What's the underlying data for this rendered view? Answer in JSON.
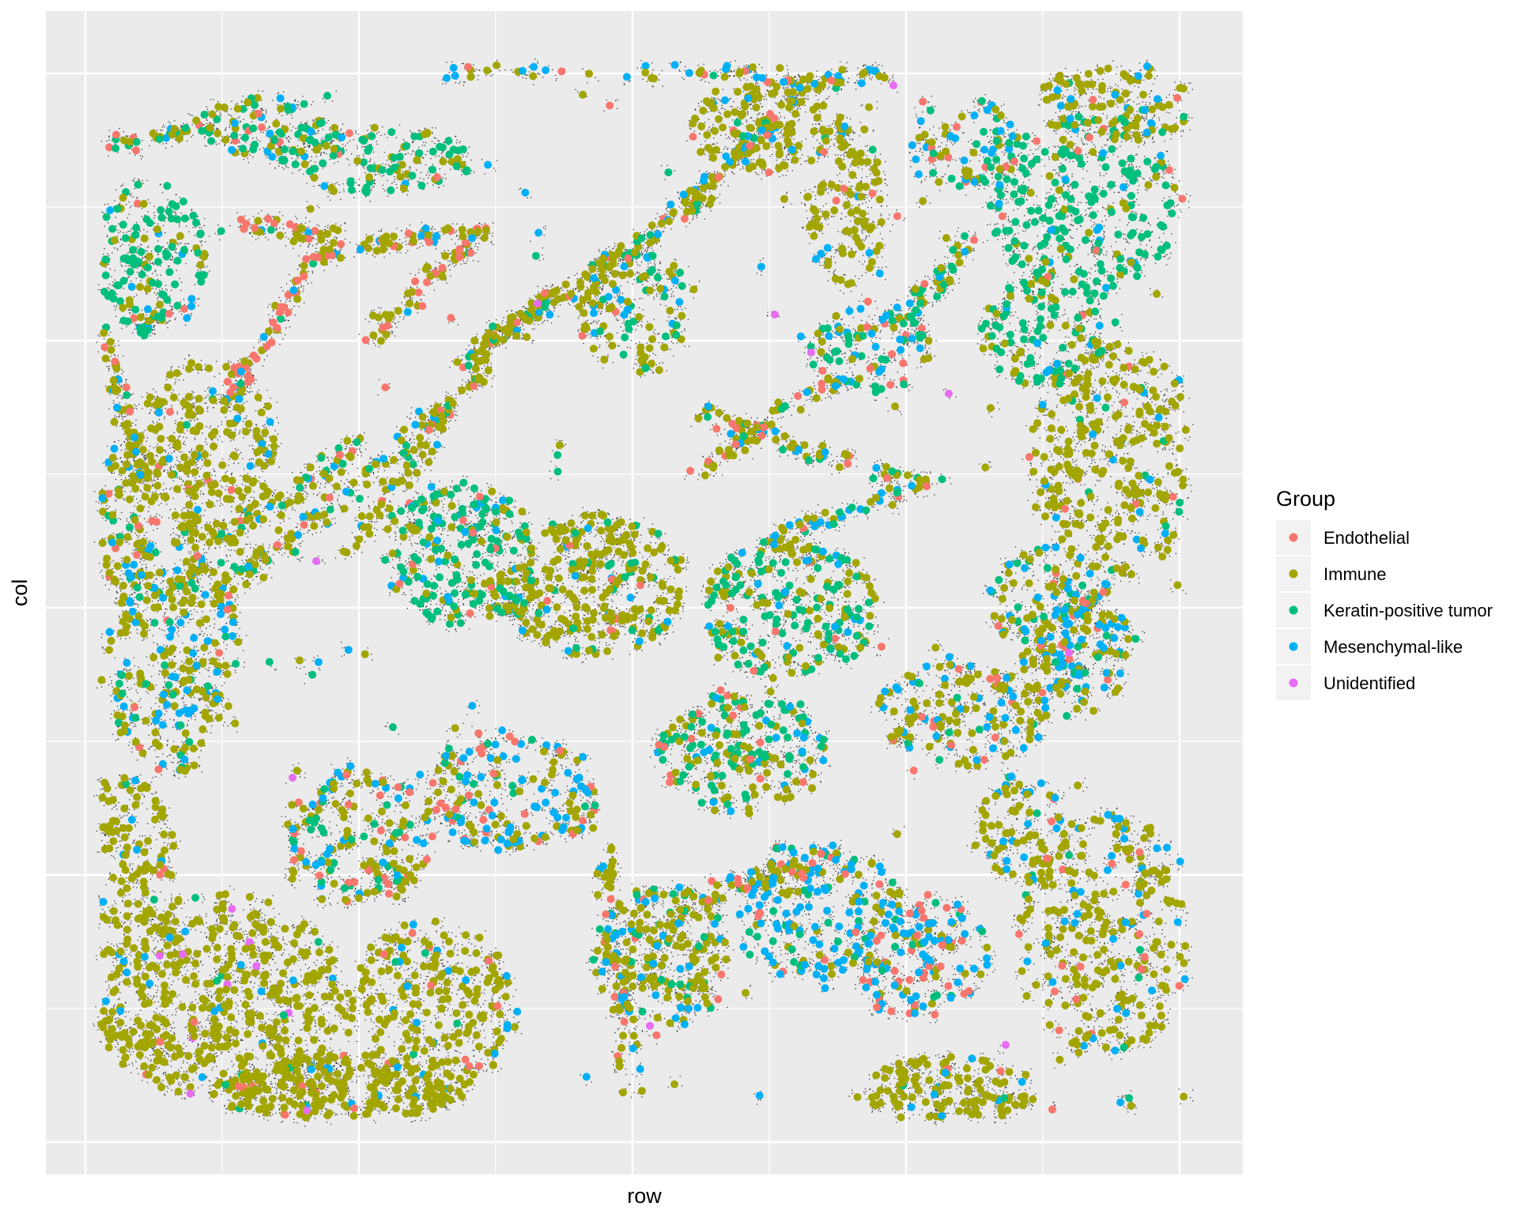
{
  "chart_data": {
    "type": "scatter",
    "title": "",
    "xlabel": "row",
    "ylabel": "col",
    "grid": true,
    "x_tick_labels_shown": false,
    "y_tick_labels_shown": false,
    "legend": {
      "title": "Group",
      "position": "right",
      "entries": [
        {
          "name": "Endothelial",
          "color": "#F8766D"
        },
        {
          "name": "Immune",
          "color": "#A3A500"
        },
        {
          "name": "Keratin-positive tumor",
          "color": "#00BF7D"
        },
        {
          "name": "Mesenchymal-like",
          "color": "#00B0F6"
        },
        {
          "name": "Unidentified",
          "color": "#E76BF3"
        }
      ]
    },
    "series": [
      {
        "name": "Endothelial",
        "color": "#F8766D"
      },
      {
        "name": "Immune",
        "color": "#A3A500"
      },
      {
        "name": "Keratin-positive tumor",
        "color": "#00BF7D"
      },
      {
        "name": "Mesenchymal-like",
        "color": "#00B0F6"
      },
      {
        "name": "Unidentified",
        "color": "#E76BF3"
      }
    ],
    "panel_background": "#EBEBEB",
    "gridline_color": "#FFFFFF",
    "speckle_color": "#000000"
  }
}
